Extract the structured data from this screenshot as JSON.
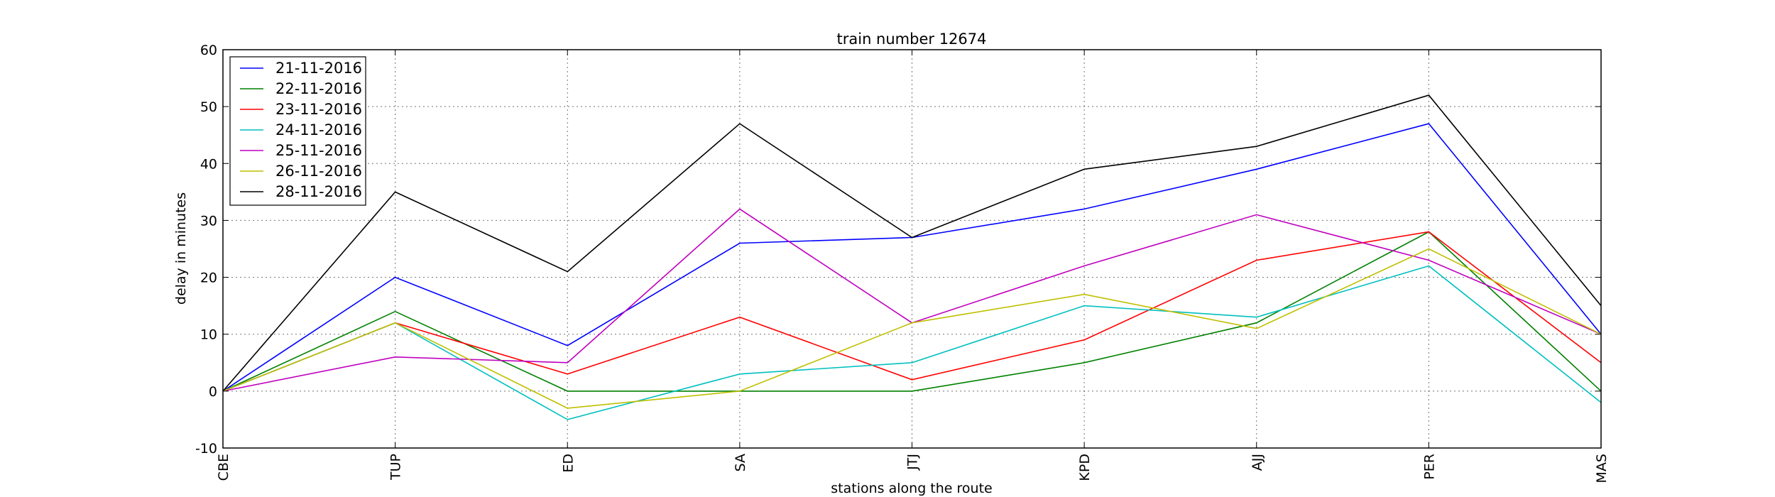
{
  "chart_data": {
    "type": "line",
    "title": "train number 12674",
    "xlabel": "stations along the route",
    "ylabel": "delay in minutes",
    "categories": [
      "CBE",
      "TUP",
      "ED",
      "SA",
      "JTJ",
      "KPD",
      "AJJ",
      "PER",
      "MAS"
    ],
    "ylim": [
      -10,
      60
    ],
    "yticks": [
      -10,
      0,
      10,
      20,
      30,
      40,
      50,
      60
    ],
    "grid": true,
    "legend_position": "top-left",
    "series": [
      {
        "name": "21-11-2016",
        "color": "#0000ff",
        "values": [
          0,
          20,
          8,
          26,
          27,
          32,
          39,
          47,
          10
        ]
      },
      {
        "name": "22-11-2016",
        "color": "#008000",
        "values": [
          0,
          14,
          0,
          0,
          0,
          5,
          12,
          28,
          0
        ]
      },
      {
        "name": "23-11-2016",
        "color": "#ff0000",
        "values": [
          0,
          12,
          3,
          13,
          2,
          9,
          23,
          28,
          5
        ]
      },
      {
        "name": "24-11-2016",
        "color": "#00bfbf",
        "values": [
          0,
          12,
          -5,
          3,
          5,
          15,
          13,
          22,
          -2
        ]
      },
      {
        "name": "25-11-2016",
        "color": "#bf00bf",
        "values": [
          0,
          6,
          5,
          32,
          12,
          22,
          31,
          23,
          10
        ]
      },
      {
        "name": "26-11-2016",
        "color": "#bfbf00",
        "values": [
          0,
          12,
          -3,
          0,
          12,
          17,
          11,
          25,
          10
        ]
      },
      {
        "name": "28-11-2016",
        "color": "#000000",
        "values": [
          0,
          35,
          21,
          47,
          27,
          39,
          43,
          52,
          15
        ]
      }
    ]
  }
}
